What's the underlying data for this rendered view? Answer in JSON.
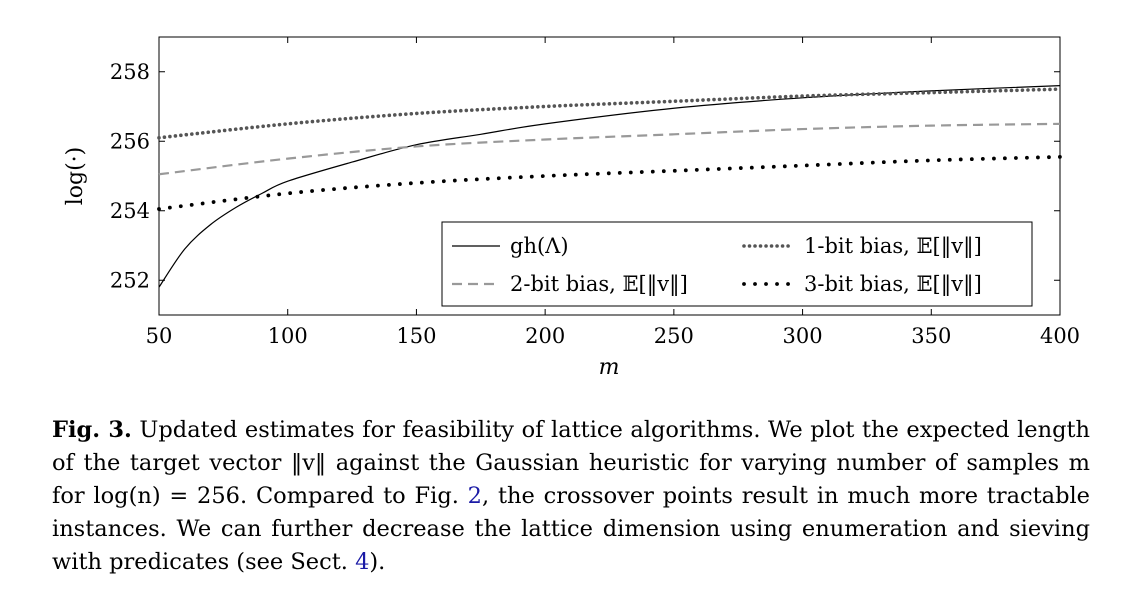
{
  "chart_data": {
    "type": "line",
    "xlabel": "m",
    "ylabel": "log(·)",
    "xlim": [
      50,
      400
    ],
    "ylim": [
      251,
      259
    ],
    "xticks": [
      50,
      100,
      150,
      200,
      250,
      300,
      350,
      400
    ],
    "yticks": [
      252,
      254,
      256,
      258
    ],
    "grid": false,
    "legend_position": "bottom-right",
    "series": [
      {
        "name": "gh(Λ)",
        "style": "solid",
        "color": "#000000",
        "x": [
          50,
          60,
          70,
          80,
          90,
          100,
          125,
          150,
          175,
          200,
          250,
          300,
          350,
          400
        ],
        "y": [
          251.8,
          252.9,
          253.6,
          254.1,
          254.5,
          254.85,
          255.4,
          255.9,
          256.2,
          256.5,
          256.95,
          257.25,
          257.45,
          257.6
        ]
      },
      {
        "name": "1-bit bias, 𝔼[‖v‖]",
        "style": "dense-dotted",
        "color": "#555555",
        "x": [
          50,
          100,
          150,
          200,
          250,
          300,
          350,
          400
        ],
        "y": [
          256.1,
          256.5,
          256.8,
          257.0,
          257.15,
          257.3,
          257.4,
          257.5
        ]
      },
      {
        "name": "2-bit bias, 𝔼[‖v‖]",
        "style": "dashed",
        "color": "#999999",
        "x": [
          50,
          100,
          150,
          200,
          250,
          300,
          350,
          400
        ],
        "y": [
          255.05,
          255.5,
          255.85,
          256.05,
          256.2,
          256.35,
          256.45,
          256.5
        ]
      },
      {
        "name": "3-bit bias, 𝔼[‖v‖]",
        "style": "loose-dotted",
        "color": "#000000",
        "x": [
          50,
          100,
          150,
          200,
          250,
          300,
          350,
          400
        ],
        "y": [
          254.05,
          254.5,
          254.8,
          255.0,
          255.15,
          255.3,
          255.45,
          255.55
        ]
      }
    ]
  },
  "caption": {
    "label": "Fig. 3.",
    "text_1": "Updated estimates for feasibility of lattice algorithms. We plot the expected length of the target vector ‖v‖ against the Gaussian heuristic for varying number of samples m for log(n) = 256. Compared to Fig. ",
    "ref_1": "2",
    "text_2": ", the crossover points result in much more tractable instances. We can further decrease the lattice dimension using enumeration and sieving with predicates (see Sect. ",
    "ref_2": "4",
    "text_3": ")."
  }
}
